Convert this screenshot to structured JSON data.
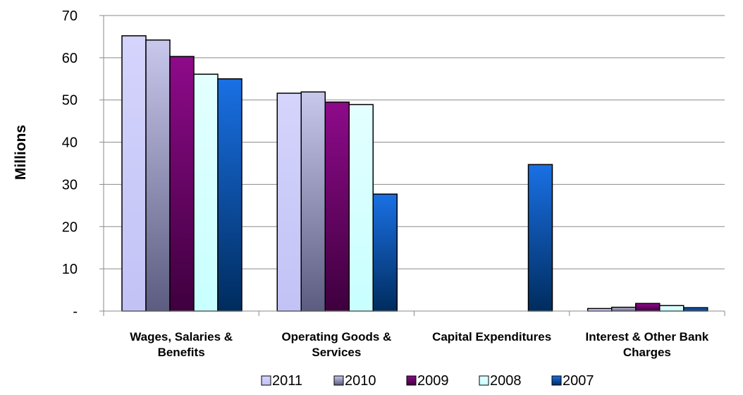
{
  "chart_data": {
    "type": "bar",
    "ylabel": "Millions",
    "ylim": [
      0,
      70
    ],
    "grid": true,
    "legend_position": "bottom",
    "y_ticks": [
      "-",
      "10",
      "20",
      "30",
      "40",
      "50",
      "60",
      "70"
    ],
    "categories": [
      [
        "Wages, Salaries &",
        "Benefits"
      ],
      [
        "Operating Goods &",
        "Services"
      ],
      [
        "Capital Expenditures"
      ],
      [
        "Interest & Other Bank",
        "Charges"
      ]
    ],
    "series": [
      {
        "name": "2011",
        "values": [
          65.2,
          51.6,
          0,
          0.6
        ]
      },
      {
        "name": "2010",
        "values": [
          64.2,
          51.9,
          0,
          0.9
        ]
      },
      {
        "name": "2009",
        "values": [
          60.3,
          49.5,
          0,
          1.8
        ]
      },
      {
        "name": "2008",
        "values": [
          56.1,
          48.9,
          0,
          1.3
        ]
      },
      {
        "name": "2007",
        "values": [
          55.0,
          27.7,
          34.7,
          0.8
        ]
      }
    ]
  },
  "colors": {
    "2011": [
      "#d4d4fc",
      "#c2c2f6"
    ],
    "2010": [
      "#c8c8ec",
      "#5c5c80"
    ],
    "2009": [
      "#8e0a8a",
      "#3e003e"
    ],
    "2008": [
      "#e4ffff",
      "#c8ffff"
    ],
    "2007": [
      "#1a70e4",
      "#002c5e"
    ]
  }
}
